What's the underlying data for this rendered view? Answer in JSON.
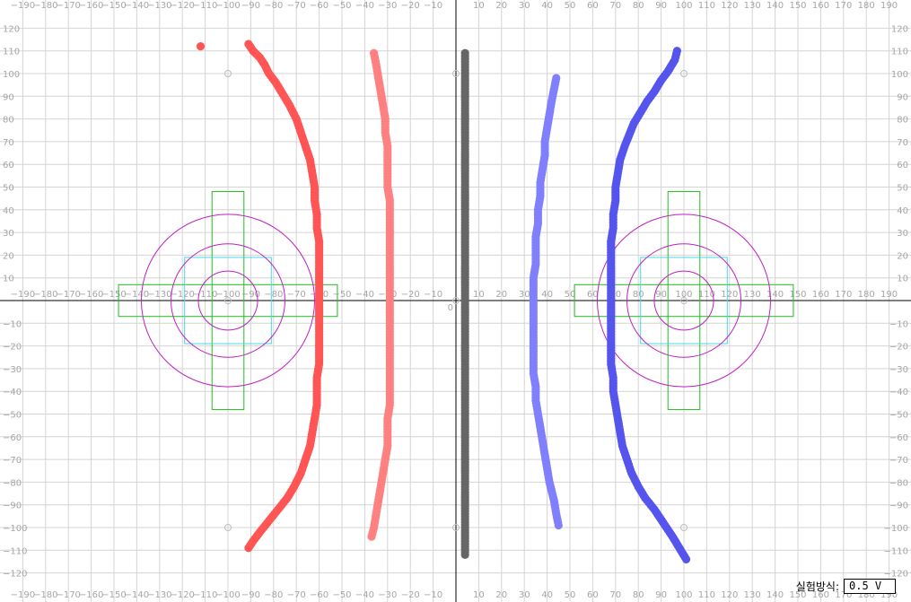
{
  "chart_data": {
    "type": "scatter",
    "xlim": [
      -190,
      190
    ],
    "ylim": [
      -120,
      120
    ],
    "grid": true,
    "grid_step": 10,
    "x_tick_labels": [
      "-190",
      "-180",
      "-170",
      "-160",
      "-150",
      "-140",
      "-130",
      "-120",
      "-110",
      "-100",
      "-90",
      "-80",
      "-70",
      "-60",
      "-50",
      "-40",
      "-30",
      "-20",
      "-10",
      "0",
      "10",
      "20",
      "30",
      "40",
      "50",
      "60",
      "70",
      "80",
      "90",
      "100",
      "110",
      "120",
      "130",
      "140",
      "150",
      "160",
      "170",
      "180",
      "190"
    ],
    "y_tick_labels": [
      "120",
      "110",
      "100",
      "90",
      "80",
      "70",
      "60",
      "50",
      "40",
      "30",
      "20",
      "10",
      "0",
      "-10",
      "-20",
      "-30",
      "-40",
      "-50",
      "-60",
      "-70",
      "-80",
      "-90",
      "-100",
      "-110",
      "-120"
    ],
    "origin_label": "0",
    "colors": {
      "grid": "#d4d4d4",
      "axis": "#000000",
      "tick_label": "#a6a6a6",
      "green_cross": "#22bb22",
      "cyan_square": "#44d8e8",
      "purple_circle": "#c020c0"
    },
    "electrodes": [
      {
        "center": [
          -100,
          0
        ],
        "cross_half_long": 48,
        "cross_half_short": 7,
        "square_half": 19,
        "circle_radii": [
          13,
          25,
          38
        ]
      },
      {
        "center": [
          100,
          0
        ],
        "cross_half_long": 48,
        "cross_half_short": 7,
        "square_half": 19,
        "circle_radii": [
          13,
          25,
          38
        ]
      }
    ],
    "reference_marks": [
      [
        -100,
        100
      ],
      [
        -100,
        -100
      ],
      [
        0,
        100
      ],
      [
        0,
        -100
      ],
      [
        100,
        100
      ],
      [
        100,
        -100
      ],
      [
        -100,
        0
      ],
      [
        100,
        0
      ],
      [
        0,
        0
      ]
    ],
    "series": [
      {
        "color": "#ff5555",
        "points": [
          [
            -112,
            112
          ],
          [
            -91,
            113
          ],
          [
            -89,
            110
          ],
          [
            -86,
            107
          ],
          [
            -84,
            104
          ],
          [
            -82,
            100
          ],
          [
            -79,
            96
          ],
          [
            -76,
            91
          ],
          [
            -73,
            86
          ],
          [
            -70,
            80
          ],
          [
            -68,
            74
          ],
          [
            -66,
            68
          ],
          [
            -64,
            62
          ],
          [
            -63,
            56
          ],
          [
            -62,
            50
          ],
          [
            -62,
            44
          ],
          [
            -61,
            38
          ],
          [
            -61,
            32
          ],
          [
            -60,
            26
          ],
          [
            -60,
            20
          ],
          [
            -60,
            14
          ],
          [
            -60,
            8
          ],
          [
            -60,
            2
          ],
          [
            -60,
            -4
          ],
          [
            -60,
            -10
          ],
          [
            -60,
            -16
          ],
          [
            -60,
            -22
          ],
          [
            -60,
            -28
          ],
          [
            -61,
            -34
          ],
          [
            -61,
            -40
          ],
          [
            -61,
            -46
          ],
          [
            -62,
            -52
          ],
          [
            -63,
            -58
          ],
          [
            -64,
            -64
          ],
          [
            -66,
            -70
          ],
          [
            -68,
            -76
          ],
          [
            -71,
            -82
          ],
          [
            -74,
            -87
          ],
          [
            -78,
            -92
          ],
          [
            -82,
            -97
          ],
          [
            -86,
            -102
          ],
          [
            -89,
            -106
          ],
          [
            -91,
            -109
          ]
        ]
      },
      {
        "color": "#ff8080",
        "points": [
          [
            -36,
            109
          ],
          [
            -35,
            104
          ],
          [
            -34,
            98
          ],
          [
            -33,
            92
          ],
          [
            -32,
            86
          ],
          [
            -31,
            80
          ],
          [
            -31,
            74
          ],
          [
            -30,
            68
          ],
          [
            -30,
            62
          ],
          [
            -30,
            56
          ],
          [
            -30,
            50
          ],
          [
            -29,
            44
          ],
          [
            -29,
            38
          ],
          [
            -29,
            32
          ],
          [
            -29,
            26
          ],
          [
            -29,
            20
          ],
          [
            -29,
            14
          ],
          [
            -29,
            8
          ],
          [
            -29,
            2
          ],
          [
            -29,
            -4
          ],
          [
            -29,
            -10
          ],
          [
            -29,
            -16
          ],
          [
            -29,
            -22
          ],
          [
            -29,
            -28
          ],
          [
            -29,
            -34
          ],
          [
            -29,
            -40
          ],
          [
            -29,
            -46
          ],
          [
            -30,
            -52
          ],
          [
            -30,
            -58
          ],
          [
            -30,
            -64
          ],
          [
            -31,
            -70
          ],
          [
            -32,
            -76
          ],
          [
            -33,
            -82
          ],
          [
            -34,
            -88
          ],
          [
            -35,
            -94
          ],
          [
            -36,
            -100
          ],
          [
            -37,
            -104
          ]
        ]
      },
      {
        "color": "#666666",
        "points": [
          [
            4,
            109
          ],
          [
            4,
            104
          ],
          [
            4,
            98
          ],
          [
            4,
            92
          ],
          [
            4,
            86
          ],
          [
            4,
            80
          ],
          [
            4,
            74
          ],
          [
            4,
            68
          ],
          [
            4,
            62
          ],
          [
            4,
            56
          ],
          [
            4,
            50
          ],
          [
            4,
            44
          ],
          [
            4,
            38
          ],
          [
            4,
            32
          ],
          [
            4,
            26
          ],
          [
            4,
            20
          ],
          [
            4,
            14
          ],
          [
            4,
            8
          ],
          [
            4,
            2
          ],
          [
            4,
            -4
          ],
          [
            4,
            -10
          ],
          [
            4,
            -16
          ],
          [
            4,
            -22
          ],
          [
            4,
            -28
          ],
          [
            4,
            -34
          ],
          [
            4,
            -40
          ],
          [
            4,
            -46
          ],
          [
            4,
            -52
          ],
          [
            4,
            -58
          ],
          [
            4,
            -64
          ],
          [
            4,
            -70
          ],
          [
            4,
            -76
          ],
          [
            4,
            -82
          ],
          [
            4,
            -88
          ],
          [
            4,
            -94
          ],
          [
            4,
            -100
          ],
          [
            4,
            -106
          ],
          [
            4,
            -112
          ]
        ]
      },
      {
        "color": "#8080ff",
        "points": [
          [
            44,
            98
          ],
          [
            43,
            93
          ],
          [
            42,
            88
          ],
          [
            41,
            82
          ],
          [
            40,
            76
          ],
          [
            39,
            70
          ],
          [
            39,
            64
          ],
          [
            38,
            58
          ],
          [
            37,
            52
          ],
          [
            37,
            46
          ],
          [
            36,
            40
          ],
          [
            36,
            34
          ],
          [
            35,
            28
          ],
          [
            35,
            22
          ],
          [
            35,
            16
          ],
          [
            34,
            10
          ],
          [
            34,
            4
          ],
          [
            34,
            -2
          ],
          [
            34,
            -8
          ],
          [
            34,
            -14
          ],
          [
            34,
            -20
          ],
          [
            34,
            -26
          ],
          [
            34,
            -32
          ],
          [
            35,
            -38
          ],
          [
            35,
            -44
          ],
          [
            36,
            -50
          ],
          [
            37,
            -56
          ],
          [
            38,
            -62
          ],
          [
            39,
            -68
          ],
          [
            40,
            -74
          ],
          [
            41,
            -80
          ],
          [
            43,
            -88
          ],
          [
            44,
            -94
          ],
          [
            45,
            -99
          ]
        ]
      },
      {
        "color": "#5555ee",
        "points": [
          [
            97,
            110
          ],
          [
            96,
            106
          ],
          [
            93,
            101
          ],
          [
            90,
            97
          ],
          [
            87,
            92
          ],
          [
            84,
            88
          ],
          [
            81,
            83
          ],
          [
            78,
            78
          ],
          [
            76,
            73
          ],
          [
            74,
            68
          ],
          [
            72,
            62
          ],
          [
            71,
            56
          ],
          [
            70,
            50
          ],
          [
            70,
            44
          ],
          [
            69,
            38
          ],
          [
            69,
            32
          ],
          [
            68,
            26
          ],
          [
            68,
            20
          ],
          [
            68,
            14
          ],
          [
            68,
            8
          ],
          [
            68,
            2
          ],
          [
            68,
            -4
          ],
          [
            68,
            -10
          ],
          [
            68,
            -16
          ],
          [
            68,
            -22
          ],
          [
            68,
            -28
          ],
          [
            69,
            -34
          ],
          [
            69,
            -40
          ],
          [
            70,
            -46
          ],
          [
            71,
            -52
          ],
          [
            72,
            -58
          ],
          [
            73,
            -64
          ],
          [
            75,
            -70
          ],
          [
            77,
            -76
          ],
          [
            80,
            -82
          ],
          [
            83,
            -87
          ],
          [
            87,
            -92
          ],
          [
            91,
            -98
          ],
          [
            95,
            -104
          ],
          [
            98,
            -109
          ],
          [
            101,
            -114
          ]
        ]
      }
    ]
  },
  "footer": {
    "label": "실험방식:",
    "value": "0.5 V"
  }
}
